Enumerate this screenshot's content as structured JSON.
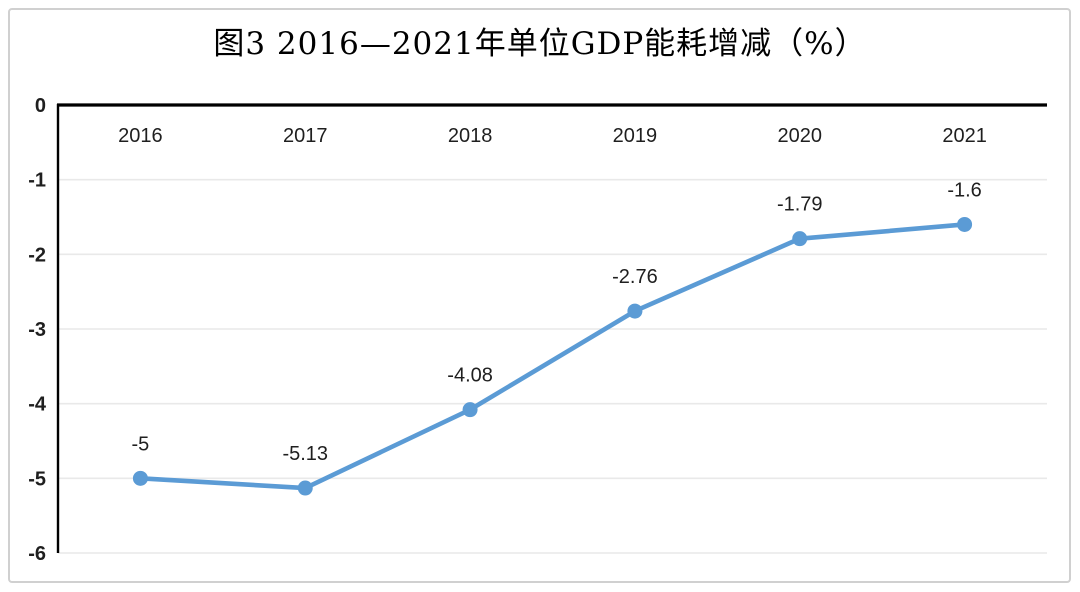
{
  "chart_data": {
    "type": "line",
    "title": "图3 2016—2021年单位GDP能耗增减（%）",
    "categories": [
      "2016",
      "2017",
      "2018",
      "2019",
      "2020",
      "2021"
    ],
    "series": [
      {
        "name": "",
        "values": [
          -5,
          -5.13,
          -4.08,
          -2.76,
          -1.79,
          -1.6
        ],
        "data_labels": [
          "-5",
          "-5.13",
          "-4.08",
          "-2.76",
          "-1.79",
          "-1.6"
        ]
      }
    ],
    "xlabel": "",
    "ylabel": "",
    "ylim": [
      -6,
      0
    ],
    "ytick_labels": [
      "0",
      "-1",
      "-2",
      "-3",
      "-4",
      "-5",
      "-6"
    ],
    "grid": "horizontal",
    "legend": "none",
    "colors": {
      "line": "#5B9BD5",
      "marker": "#5B9BD5",
      "grid": "#e9e9e9",
      "axis": "#000000",
      "text": "#1f1f1f",
      "frame": "#d0d0d0"
    }
  }
}
